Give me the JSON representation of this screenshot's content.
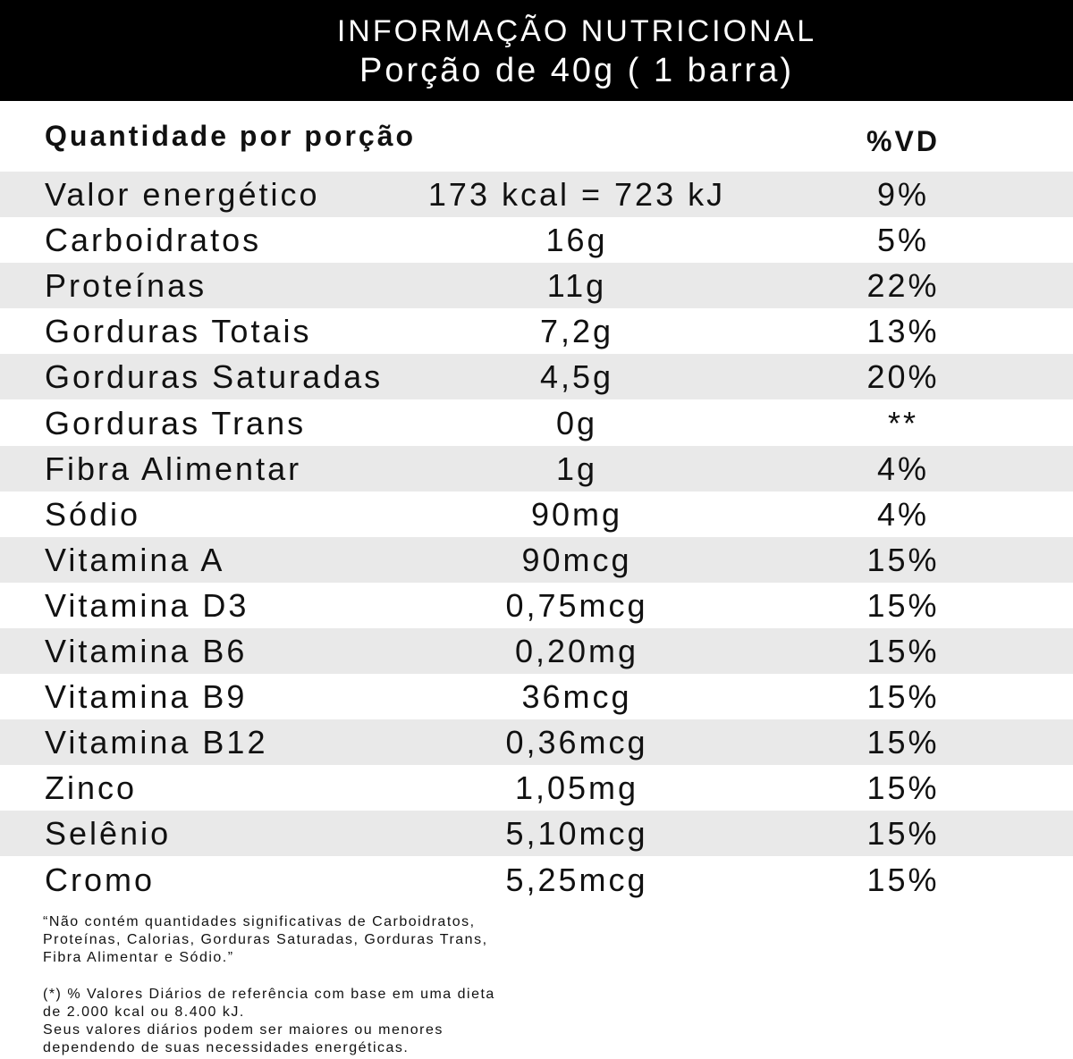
{
  "header": {
    "title": "INFORMAÇÃO NUTRICIONAL",
    "subtitle": "Porção de 40g ( 1 barra)"
  },
  "table": {
    "columns": [
      "Quantidade por porção",
      "%VD"
    ],
    "rows": [
      [
        "Valor energético",
        "173 kcal = 723 kJ",
        "9%"
      ],
      [
        "Carboidratos",
        "16g",
        "5%"
      ],
      [
        "Proteínas",
        "11g",
        "22%"
      ],
      [
        "Gorduras Totais",
        "7,2g",
        "13%"
      ],
      [
        "Gorduras Saturadas",
        "4,5g",
        "20%"
      ],
      [
        "Gorduras Trans",
        "0g",
        "**"
      ],
      [
        "Fibra Alimentar",
        "1g",
        "4%"
      ],
      [
        "Sódio",
        "90mg",
        "4%"
      ],
      [
        "Vitamina A",
        "90mcg",
        "15%"
      ],
      [
        "Vitamina D3",
        "0,75mcg",
        "15%"
      ],
      [
        "Vitamina B6",
        "0,20mg",
        "15%"
      ],
      [
        "Vitamina B9",
        "36mcg",
        "15%"
      ],
      [
        "Vitamina B12",
        "0,36mcg",
        "15%"
      ],
      [
        "Zinco",
        "1,05mg",
        "15%"
      ],
      [
        "Selênio",
        "5,10mcg",
        "15%"
      ],
      [
        "Cromo",
        "5,25mcg",
        "15%"
      ]
    ]
  },
  "footnotes": [
    [
      "“Não contém quantidades significativas de Carboidratos,",
      "Proteínas, Calorias, Gorduras Saturadas, Gorduras Trans,",
      "Fibra Alimentar e Sódio.”"
    ],
    [
      "(*) % Valores Diários de referência com base em uma dieta",
      "de 2.000 kcal ou 8.400 kJ.",
      "Seus valores diários podem ser maiores ou menores",
      "dependendo de suas necessidades energéticas."
    ]
  ]
}
